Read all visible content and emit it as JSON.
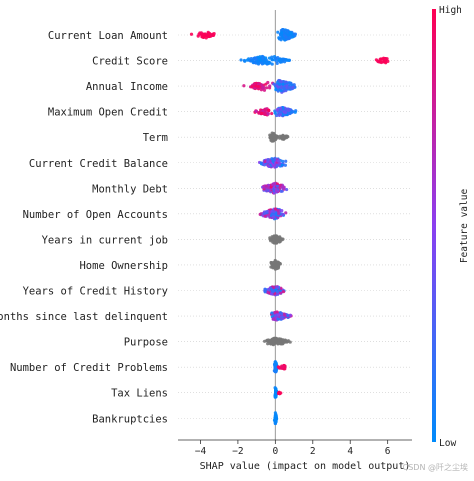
{
  "chart_data": {
    "type": "scatter",
    "subtype": "shap-beeswarm-summary",
    "xlabel": "SHAP value (impact on model output)",
    "xlim": [
      -5.2,
      7.3
    ],
    "xticks": [
      -4,
      -2,
      0,
      2,
      4,
      6
    ],
    "zero_line": 0,
    "colorbar": {
      "title": "Feature value",
      "high_label": "High",
      "low_label": "Low",
      "high_color": "#ff0052",
      "low_color": "#008bfb",
      "neutral_color": "#777777"
    },
    "features": [
      {
        "name": "Current Loan Amount",
        "clusters": [
          {
            "min": -4.7,
            "max": -2.8,
            "center": -3.7,
            "spread": 0.45,
            "count": 45,
            "color_from": 0.95,
            "color_to": 1.0
          },
          {
            "min": -0.1,
            "max": 1.2,
            "center": 0.45,
            "spread": 0.9,
            "count": 110,
            "color_from": 0.0,
            "color_to": 0.15
          }
        ]
      },
      {
        "name": "Credit Score",
        "clusters": [
          {
            "min": -2.0,
            "max": 0.5,
            "center": -0.4,
            "spread": 0.8,
            "count": 90,
            "color_from": 0.0,
            "color_to": 0.12
          },
          {
            "min": 0.0,
            "max": 0.9,
            "center": 0.3,
            "spread": 0.3,
            "count": 20,
            "color_from": 0.0,
            "color_to": 0.1
          },
          {
            "min": 5.2,
            "max": 6.2,
            "center": 5.8,
            "spread": 0.4,
            "count": 25,
            "color_from": 0.95,
            "color_to": 1.0
          }
        ]
      },
      {
        "name": "Annual Income",
        "clusters": [
          {
            "min": -1.8,
            "max": 0.0,
            "center": -0.5,
            "spread": 0.8,
            "count": 60,
            "color_from": 0.75,
            "color_to": 1.0
          },
          {
            "min": -0.3,
            "max": 1.3,
            "center": 0.3,
            "spread": 1.0,
            "count": 110,
            "color_from": 0.0,
            "color_to": 0.4
          }
        ]
      },
      {
        "name": "Maximum Open Credit",
        "clusters": [
          {
            "min": -1.4,
            "max": 0.0,
            "center": -0.4,
            "spread": 0.55,
            "count": 50,
            "color_from": 0.7,
            "color_to": 1.0
          },
          {
            "min": -0.2,
            "max": 1.2,
            "center": 0.2,
            "spread": 0.9,
            "count": 110,
            "color_from": 0.0,
            "color_to": 0.45
          }
        ]
      },
      {
        "name": "Term",
        "clusters": [
          {
            "min": -0.4,
            "max": 0.2,
            "center": -0.15,
            "spread": 0.7,
            "count": 50,
            "color_from": -1,
            "color_to": -1
          },
          {
            "min": 0.1,
            "max": 0.8,
            "center": 0.45,
            "spread": 0.35,
            "count": 25,
            "color_from": -1,
            "color_to": -1
          }
        ]
      },
      {
        "name": "Current Credit Balance",
        "clusters": [
          {
            "min": -1.0,
            "max": 0.7,
            "center": 0.0,
            "spread": 0.8,
            "count": 110,
            "color_from": 0.0,
            "color_to": 0.75
          }
        ]
      },
      {
        "name": "Monthly Debt",
        "clusters": [
          {
            "min": -0.9,
            "max": 0.7,
            "center": 0.0,
            "spread": 0.8,
            "count": 110,
            "color_from": 0.25,
            "color_to": 1.0
          }
        ]
      },
      {
        "name": "Number of Open Accounts",
        "clusters": [
          {
            "min": -1.0,
            "max": 0.7,
            "center": 0.0,
            "spread": 0.8,
            "count": 110,
            "color_from": 0.0,
            "color_to": 0.85
          }
        ]
      },
      {
        "name": "Years in current job",
        "clusters": [
          {
            "min": -0.4,
            "max": 0.5,
            "center": 0.0,
            "spread": 0.7,
            "count": 60,
            "color_from": -1,
            "color_to": -1
          }
        ]
      },
      {
        "name": "Home Ownership",
        "clusters": [
          {
            "min": -0.35,
            "max": 0.4,
            "center": 0.0,
            "spread": 0.7,
            "count": 60,
            "color_from": -1,
            "color_to": -1
          }
        ]
      },
      {
        "name": "Years of Credit History",
        "clusters": [
          {
            "min": -0.7,
            "max": 0.6,
            "center": 0.0,
            "spread": 0.7,
            "count": 100,
            "color_from": 0.0,
            "color_to": 0.9
          }
        ]
      },
      {
        "name": "Months since last delinquent",
        "clusters": [
          {
            "min": -0.5,
            "max": 1.0,
            "center": 0.05,
            "spread": 0.7,
            "count": 100,
            "color_from": 0.0,
            "color_to": 0.9
          }
        ]
      },
      {
        "name": "Purpose",
        "clusters": [
          {
            "min": -0.7,
            "max": 1.0,
            "center": 0.0,
            "spread": 0.55,
            "count": 90,
            "color_from": -1,
            "color_to": -1
          }
        ]
      },
      {
        "name": "Number of Credit Problems",
        "clusters": [
          {
            "min": -0.1,
            "max": 0.15,
            "center": 0.0,
            "spread": 0.9,
            "count": 45,
            "color_from": 0.0,
            "color_to": 0.1
          },
          {
            "min": 0.1,
            "max": 0.8,
            "center": 0.45,
            "spread": 0.3,
            "count": 18,
            "color_from": 0.9,
            "color_to": 1.0
          }
        ]
      },
      {
        "name": "Tax Liens",
        "clusters": [
          {
            "min": -0.05,
            "max": 0.1,
            "center": 0.0,
            "spread": 0.9,
            "count": 45,
            "color_from": 0.0,
            "color_to": 0.05
          },
          {
            "min": 0.1,
            "max": 0.3,
            "center": 0.2,
            "spread": 0.2,
            "count": 8,
            "color_from": 0.95,
            "color_to": 1.0
          }
        ]
      },
      {
        "name": "Bankruptcies",
        "clusters": [
          {
            "min": -0.05,
            "max": 0.08,
            "center": 0.0,
            "spread": 0.9,
            "count": 45,
            "color_from": 0.0,
            "color_to": 0.05
          }
        ]
      }
    ]
  },
  "watermark": "CSDN @阡之尘埃"
}
